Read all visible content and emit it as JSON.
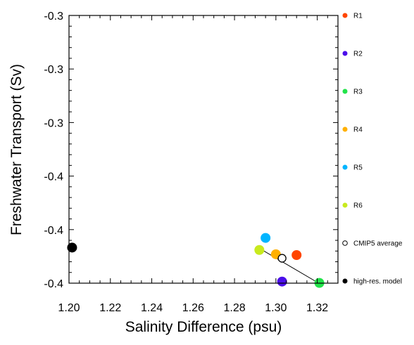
{
  "chart_data": {
    "type": "scatter",
    "xlabel": "Salinity Difference (psu)",
    "ylabel": "Freshwater Transport (Sv)",
    "xlim": [
      1.2,
      1.33
    ],
    "ylim": [
      -0.4,
      -0.3
    ],
    "x_ticks": [
      1.2,
      1.22,
      1.24,
      1.26,
      1.28,
      1.3,
      1.32
    ],
    "x_tick_labels": [
      "1.20",
      "1.22",
      "1.24",
      "1.26",
      "1.28",
      "1.30",
      "1.32"
    ],
    "y_tick_labels": [
      "-0.3",
      "-0.3",
      "-0.3",
      "-0.4",
      "-0.4",
      "-0.4"
    ],
    "grid": false,
    "legend_position": "right",
    "series": [
      {
        "name": "R1",
        "color": "#ff4500",
        "marker": "filled-circle",
        "x": 1.31,
        "y": -0.3895
      },
      {
        "name": "R2",
        "color": "#4b0eea",
        "marker": "filled-circle",
        "x": 1.303,
        "y": -0.3994
      },
      {
        "name": "R3",
        "color": "#22e34a",
        "marker": "filled-circle",
        "x": 1.321,
        "y": -0.3999
      },
      {
        "name": "R4",
        "color": "#ffb000",
        "marker": "filled-circle",
        "x": 1.3,
        "y": -0.3892
      },
      {
        "name": "R5",
        "color": "#00b5ff",
        "marker": "filled-circle",
        "x": 1.295,
        "y": -0.3831
      },
      {
        "name": "R6",
        "color": "#c8ea1e",
        "marker": "filled-circle",
        "x": 1.292,
        "y": -0.3876
      },
      {
        "name": "CMIP5 average",
        "color": "#000000",
        "marker": "open-circle",
        "x": 1.303,
        "y": -0.3907
      },
      {
        "name": "high-res. model",
        "color": "#000000",
        "marker": "filled-circle",
        "x": 1.2015,
        "y": -0.3867
      }
    ],
    "fit_line": {
      "x": [
        1.2925,
        1.3205
      ],
      "y": [
        -0.3872,
        -0.3999
      ],
      "color": "#000000"
    }
  }
}
